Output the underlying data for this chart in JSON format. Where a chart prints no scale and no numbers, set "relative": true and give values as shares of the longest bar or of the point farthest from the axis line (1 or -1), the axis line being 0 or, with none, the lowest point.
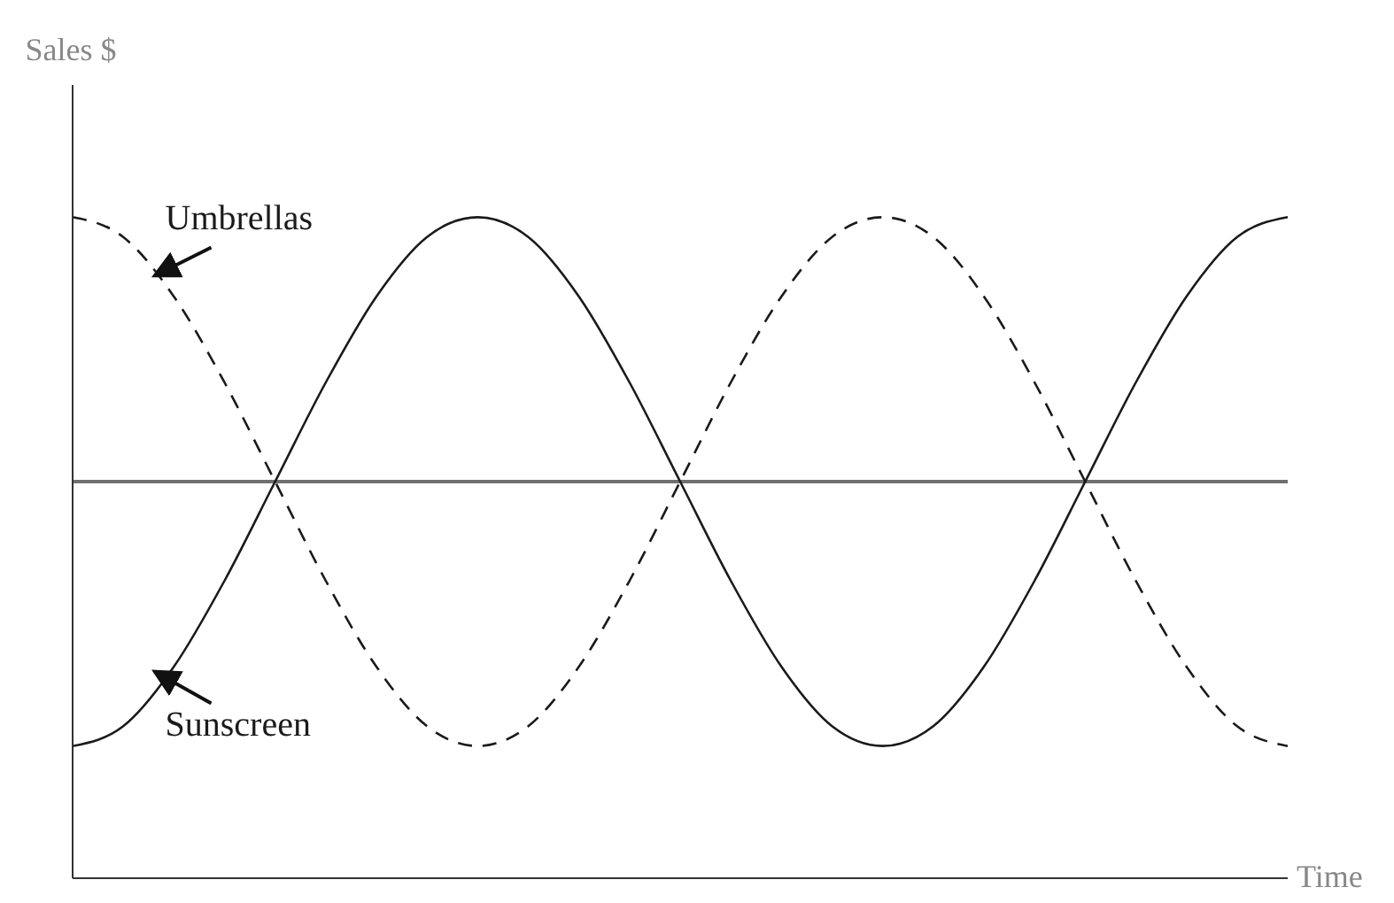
{
  "chart_data": {
    "type": "line",
    "relative": true,
    "ylabel": "Sales $",
    "xlabel": "Time",
    "categories": [
      null,
      null,
      null,
      null,
      null,
      null,
      null,
      null,
      null,
      null,
      null,
      null,
      null,
      null,
      null,
      null,
      null,
      null,
      null,
      null,
      null,
      null,
      null,
      null,
      null
    ],
    "series": [
      {
        "name": "Umbrellas",
        "color": "#1a1a1a",
        "line_style": "dashed",
        "values": [
          1.0,
          0.97,
          0.88,
          0.75,
          0.6,
          0.45,
          0.32,
          0.23,
          0.2,
          0.23,
          0.32,
          0.45,
          0.6,
          0.75,
          0.88,
          0.97,
          1.0,
          0.97,
          0.88,
          0.75,
          0.6,
          0.45,
          0.32,
          0.23,
          0.2
        ]
      },
      {
        "name": "Sunscreen",
        "color": "#1a1a1a",
        "line_style": "solid",
        "values": [
          0.2,
          0.23,
          0.32,
          0.45,
          0.6,
          0.75,
          0.88,
          0.97,
          1.0,
          0.97,
          0.88,
          0.75,
          0.6,
          0.45,
          0.32,
          0.23,
          0.2,
          0.23,
          0.32,
          0.45,
          0.6,
          0.75,
          0.88,
          0.97,
          1.0
        ]
      }
    ],
    "ref_lines": [
      {
        "axis": "y",
        "value": 0.6,
        "color": "#707070"
      }
    ],
    "marker": "none",
    "grid": false
  }
}
